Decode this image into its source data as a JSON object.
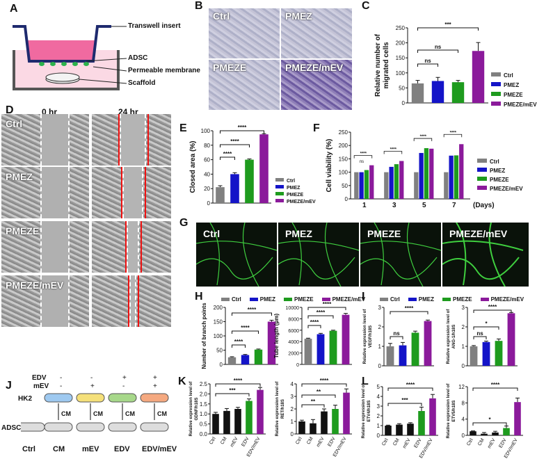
{
  "panels": [
    "A",
    "B",
    "C",
    "D",
    "E",
    "F",
    "G",
    "H",
    "I",
    "J",
    "K",
    "L"
  ],
  "colors": {
    "ctrl": "#808080",
    "pmez": "#1414c8",
    "pmeze": "#1e9b1e",
    "pmezemev": "#8b1a9b",
    "membrane": "#1e2a6e",
    "medium": "#f06aa0"
  },
  "groups4": [
    "Ctrl",
    "PMEZ",
    "PMEZE",
    "PMEZE/mEV"
  ],
  "panelA": {
    "labels": [
      "Transwell insert",
      "ADSC",
      "Permeable membrane",
      "Scaffold"
    ]
  },
  "panelB": {
    "labels": [
      "Ctrl",
      "PMEZ",
      "PMEZE",
      "PMEZE/mEV"
    ]
  },
  "panelD": {
    "times": [
      "0 hr",
      "24 hr"
    ],
    "rows": [
      "Ctrl",
      "PMEZ",
      "PMEZE",
      "PMEZE/mEV"
    ]
  },
  "panelG": {
    "labels": [
      "Ctrl",
      "PMEZ",
      "PMEZE",
      "PMEZE/mEV"
    ]
  },
  "panelJ": {
    "edv_label": "EDV",
    "mev_label": "mEV",
    "edv_signs": [
      "-",
      "-",
      "+",
      "+"
    ],
    "mev_signs": [
      "-",
      "+",
      "-",
      "+"
    ],
    "row1": "HK2",
    "row2": "ADSC",
    "cm": "CM",
    "columns": [
      "Ctrl",
      "CM",
      "mEV",
      "EDV",
      "EDV/mEV"
    ]
  },
  "chart_data": [
    {
      "id": "C",
      "type": "bar",
      "categories": [
        "Ctrl",
        "PMEZ",
        "PMEZE",
        "PMEZE/mEV"
      ],
      "values": [
        65,
        73,
        69,
        173
      ],
      "errors": [
        10,
        12,
        6,
        28
      ],
      "ylabel": "Relative number of migrated cells",
      "ylim": [
        0,
        250
      ],
      "yticks": [
        "0",
        "50",
        "100",
        "150",
        "200",
        "250"
      ],
      "sig": [
        "ns",
        "ns",
        "***"
      ],
      "legend": [
        "Ctrl",
        "PMEZ",
        "PMEZE",
        "PMEZE/mEV"
      ]
    },
    {
      "id": "E",
      "type": "bar",
      "categories": [
        "Ctrl",
        "PMEZ",
        "PMEZE",
        "PMEZE/mEV"
      ],
      "values": [
        22,
        40,
        60,
        95
      ],
      "errors": [
        2,
        2,
        1,
        1
      ],
      "ylabel": "Closed area (%)",
      "ylim": [
        0,
        100
      ],
      "yticks": [
        "0",
        "20",
        "40",
        "60",
        "80",
        "100"
      ],
      "sig": [
        "****",
        "****",
        "****"
      ],
      "legend": [
        "Ctrl",
        "PMEZ",
        "PMEZE",
        "PMEZE/mEV"
      ]
    },
    {
      "id": "F",
      "type": "bar",
      "x": [
        "1",
        "3",
        "5",
        "7"
      ],
      "xlabel": "(Days)",
      "ylabel": "Cell viability (%)",
      "ylim": [
        0,
        250
      ],
      "yticks": [
        "0",
        "50",
        "100",
        "150",
        "200",
        "250"
      ],
      "series": [
        {
          "name": "Ctrl",
          "values": [
            100,
            100,
            100,
            100
          ]
        },
        {
          "name": "PMEZ",
          "values": [
            100,
            120,
            172,
            162
          ]
        },
        {
          "name": "PMEZE",
          "values": [
            108,
            130,
            190,
            163
          ]
        },
        {
          "name": "PMEZE/mEV",
          "values": [
            126,
            142,
            188,
            205
          ]
        }
      ],
      "sig_top": [
        "****",
        "****",
        "****",
        "****"
      ],
      "ns": "ns"
    },
    {
      "id": "H1",
      "type": "bar",
      "categories": [
        "Ctrl",
        "PMEZ",
        "PMEZE",
        "PMEZE/mEV"
      ],
      "values": [
        25,
        33,
        52,
        150
      ],
      "errors": [
        2,
        2,
        2,
        5
      ],
      "ylabel": "Number of branch points",
      "ylim": [
        0,
        200
      ],
      "yticks": [
        "0",
        "50",
        "100",
        "150",
        "200"
      ],
      "sig": [
        "****",
        "****",
        "****"
      ]
    },
    {
      "id": "H2",
      "type": "bar",
      "categories": [
        "Ctrl",
        "PMEZ",
        "PMEZE",
        "PMEZE/mEV"
      ],
      "values": [
        4500,
        5300,
        5900,
        8700
      ],
      "errors": [
        100,
        150,
        100,
        250
      ],
      "ylabel": "Tube length (μm)",
      "ylim": [
        0,
        10000
      ],
      "yticks": [
        "0",
        "2000",
        "4000",
        "6000",
        "8000",
        "10000"
      ],
      "sig": [
        "****",
        "****",
        "****"
      ]
    },
    {
      "id": "I1",
      "type": "bar",
      "categories": [
        "Ctrl",
        "PMEZ",
        "PMEZE",
        "PMEZE/mEV"
      ],
      "values": [
        1.0,
        1.05,
        1.7,
        2.3
      ],
      "errors": [
        0.15,
        0.15,
        0.08,
        0.05
      ],
      "ylabel": "Relative expression level of VEGF/h18S",
      "ylim": [
        0,
        3
      ],
      "yticks": [
        "0",
        "1",
        "2",
        "3"
      ],
      "sig": [
        "ns",
        "****"
      ]
    },
    {
      "id": "I2",
      "type": "bar",
      "categories": [
        "Ctrl",
        "PMEZ",
        "PMEZE",
        "PMEZE/mEV"
      ],
      "values": [
        1.0,
        1.22,
        1.28,
        2.7
      ],
      "errors": [
        0.04,
        0.05,
        0.1,
        0.04
      ],
      "ylabel": "Relative expression level of ANG-1/h18S",
      "ylim": [
        0,
        3
      ],
      "yticks": [
        "0",
        "1",
        "2",
        "3"
      ],
      "sig": [
        "ns",
        "*",
        "****"
      ]
    },
    {
      "id": "K1",
      "type": "bar",
      "categories": [
        "Ctrl",
        "CM",
        "mEV",
        "EDV",
        "EDV/mEV"
      ],
      "values": [
        1.0,
        1.15,
        1.25,
        1.65,
        2.2
      ],
      "errors": [
        0.08,
        0.12,
        0.08,
        0.1,
        0.12
      ],
      "ylabel": "Relative expression level of GDNF/h18S",
      "ylim": [
        0,
        2.5
      ],
      "yticks": [
        "0.0",
        "0.5",
        "1.0",
        "1.5",
        "2.0",
        "2.5"
      ],
      "sig": [
        "***",
        "****"
      ]
    },
    {
      "id": "K2",
      "type": "bar",
      "categories": [
        "Ctrl",
        "CM",
        "mEV",
        "EDV",
        "EDV/mEV"
      ],
      "values": [
        1.0,
        0.85,
        1.8,
        2.0,
        3.3
      ],
      "errors": [
        0.1,
        0.3,
        0.2,
        0.3,
        0.3
      ],
      "ylabel": "Relative expression level of RET/h18S",
      "ylim": [
        0,
        4
      ],
      "yticks": [
        "0",
        "1",
        "2",
        "3",
        "4"
      ],
      "sig": [
        "**",
        "**",
        "****"
      ]
    },
    {
      "id": "L1",
      "type": "bar",
      "categories": [
        "Ctrl",
        "CM",
        "mEV",
        "EDV",
        "EDV/mEV"
      ],
      "values": [
        1.0,
        1.1,
        1.2,
        2.5,
        3.8
      ],
      "errors": [
        0.05,
        0.1,
        0.1,
        0.4,
        0.4
      ],
      "ylabel": "Relative expression level of ETV4/h18S",
      "ylim": [
        0,
        5
      ],
      "yticks": [
        "0",
        "1",
        "2",
        "3",
        "4",
        "5"
      ],
      "sig": [
        "***",
        "****"
      ]
    },
    {
      "id": "L2",
      "type": "bar",
      "categories": [
        "Ctrl",
        "CM",
        "mEV",
        "EDV",
        "EDV/mEV"
      ],
      "values": [
        1.0,
        0.4,
        0.7,
        1.8,
        8.2
      ],
      "errors": [
        0.1,
        0.3,
        0.3,
        0.5,
        1.0
      ],
      "ylabel": "Relative expression level of ETV5/h18S",
      "ylim": [
        0,
        12
      ],
      "yticks": [
        "0",
        "4",
        "8",
        "12"
      ],
      "sig": [
        "*",
        "****"
      ]
    }
  ]
}
